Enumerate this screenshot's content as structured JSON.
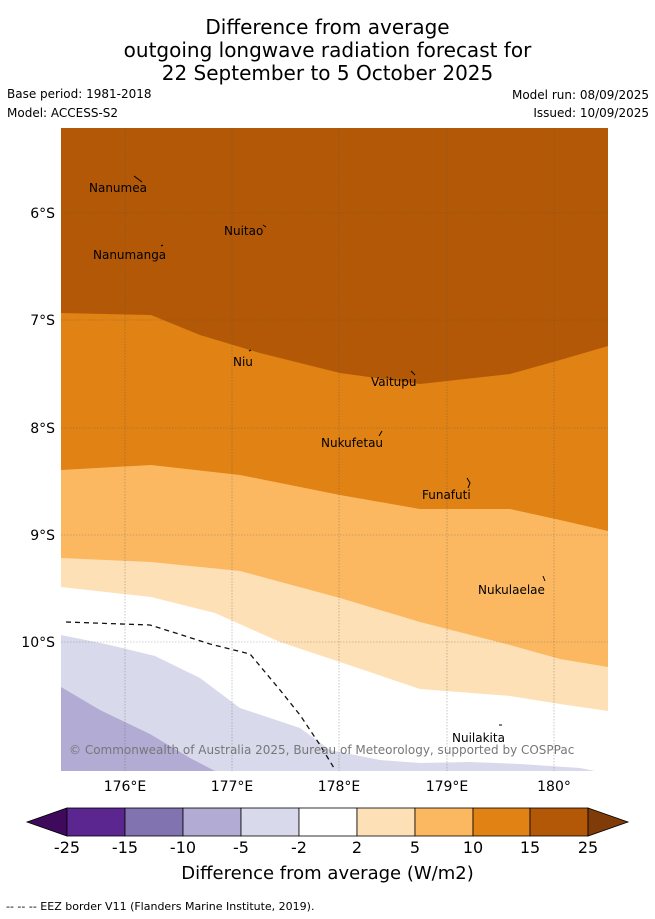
{
  "title_lines": [
    "Difference from average",
    "outgoing longwave radiation forecast for",
    "22 September to 5 October 2025"
  ],
  "meta": {
    "base_period": "Base period: 1981-2018",
    "model": "Model: ACCESS-S2",
    "model_run": "Model run: 08/09/2025",
    "issued": "Issued: 10/09/2025"
  },
  "map": {
    "lat_labels": [
      "6°S",
      "7°S",
      "8°S",
      "9°S",
      "10°S"
    ],
    "lon_labels": [
      "176°E",
      "177°E",
      "178°E",
      "179°E",
      "180°"
    ],
    "places": [
      "Nanumea",
      "Nuitao",
      "Nanumanga",
      "Niu",
      "Vaitupu",
      "Nukufetau",
      "Funafuti",
      "Nukulaelae",
      "Nuilakita"
    ],
    "copyright": "© Commonwealth of Australia 2025, Bureau of Meteorology, supported by COSPPac"
  },
  "colorbar": {
    "ticks": [
      "-25",
      "-15",
      "-10",
      "-5",
      "-2",
      "2",
      "5",
      "10",
      "15",
      "25"
    ],
    "colors": [
      "#3f0a5c",
      "#5c2690",
      "#8172b0",
      "#b2abd3",
      "#d8daeb",
      "#ffffff",
      "#fee0b6",
      "#fbb861",
      "#e08214",
      "#b35806",
      "#7f3b08"
    ],
    "title": "Difference from average (W/m2)"
  },
  "footnote": "-- -- -- EEZ border V11 (Flanders Marine Institute, 2019)."
}
